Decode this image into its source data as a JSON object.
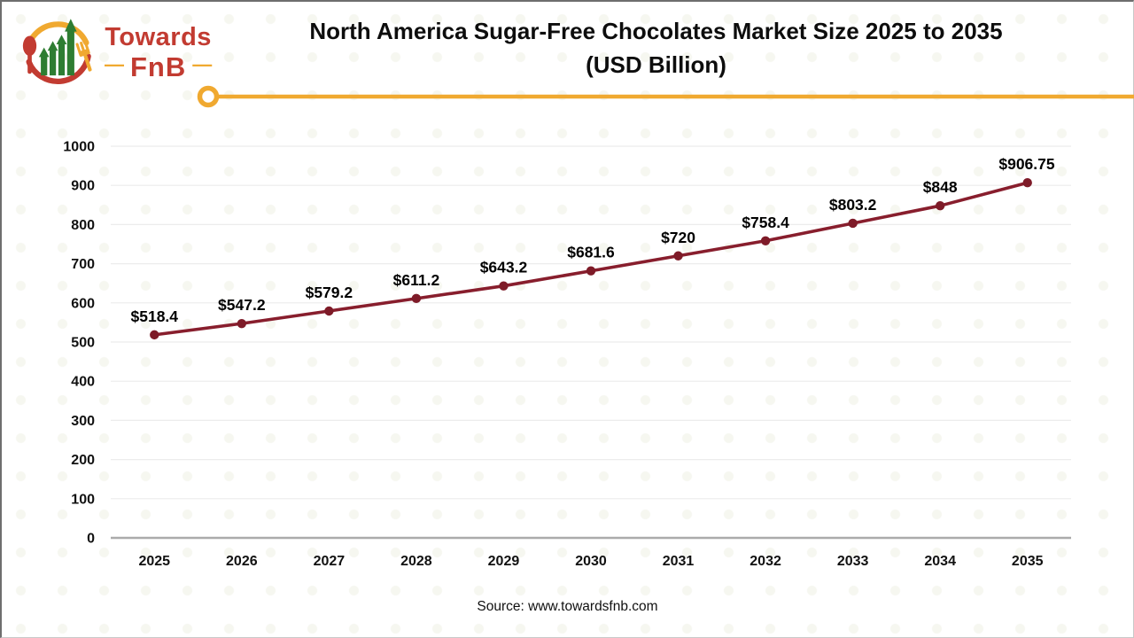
{
  "logo": {
    "brand_top": "Towards",
    "brand_bottom": "FnB",
    "dash": "—",
    "red": "#C23B31",
    "amber": "#F0A930",
    "green": "#2E7D32"
  },
  "header": {
    "title_line1": "North America Sugar-Free Chocolates Market Size 2025 to 2035",
    "title_line2": "(USD Billion)"
  },
  "chart_data": {
    "type": "line",
    "title": "North America Sugar-Free Chocolates Market Size 2025 to 2035 (USD Billion)",
    "categories": [
      "2025",
      "2026",
      "2027",
      "2028",
      "2029",
      "2030",
      "2031",
      "2032",
      "2033",
      "2034",
      "2035"
    ],
    "values": [
      518.4,
      547.2,
      579.2,
      611.2,
      643.2,
      681.6,
      720,
      758.4,
      803.2,
      848,
      906.75
    ],
    "point_labels": [
      "$518.4",
      "$547.2",
      "$579.2",
      "$611.2",
      "$643.2",
      "$681.6",
      "$720",
      "$758.4",
      "$803.2",
      "$848",
      "$906.75"
    ],
    "xlabel": "",
    "ylabel": "",
    "ylim": [
      0,
      1000
    ],
    "ytick_step": 100,
    "grid": true,
    "legend": "none",
    "line_color": "#881E2D",
    "marker_color": "#7E1B28",
    "gridline_color": "#ECECEC",
    "axis_line_color": "#ABABAB",
    "accent_color": "#F0A930"
  },
  "footer": {
    "source": "Source: www.towardsfnb.com"
  }
}
